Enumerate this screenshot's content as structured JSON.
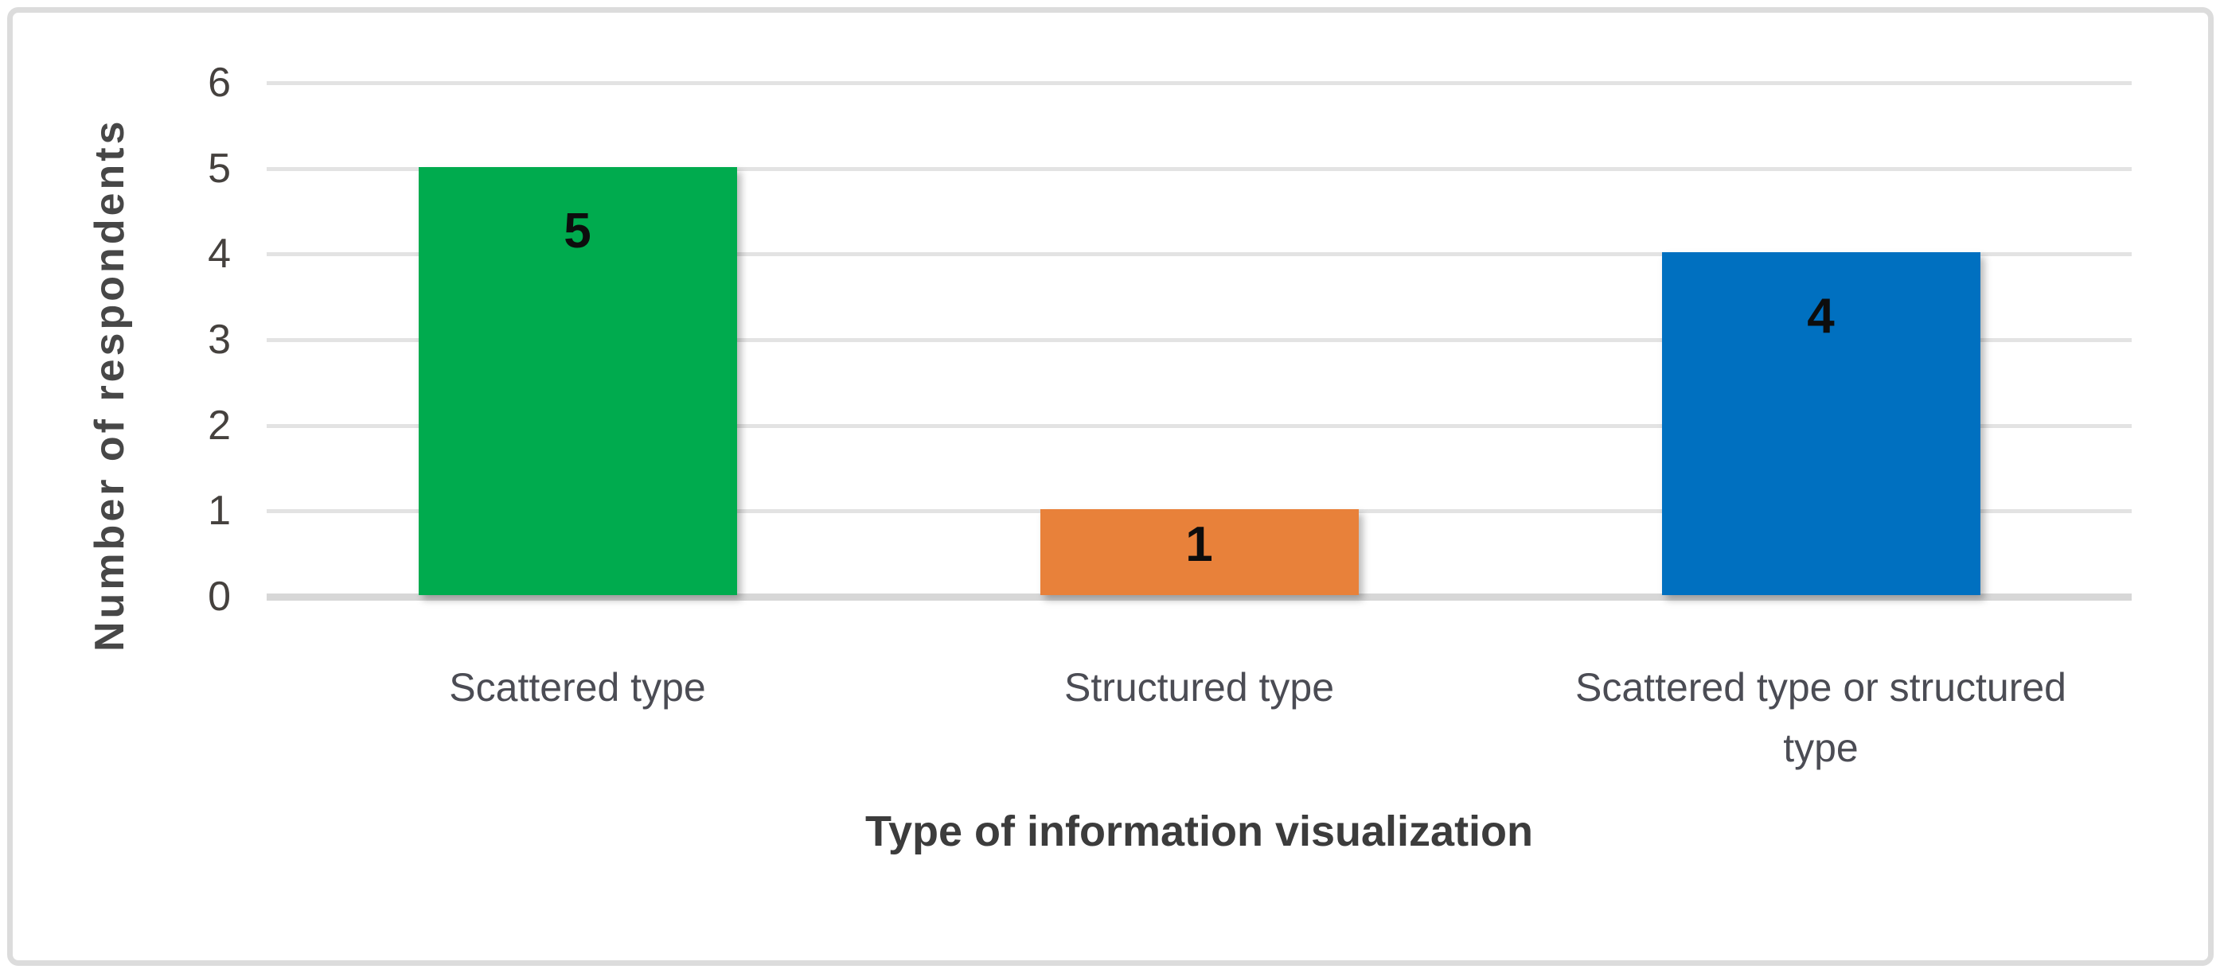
{
  "chart_data": {
    "type": "bar",
    "title": "",
    "categories": [
      "Scattered type",
      "Structured type",
      "Scattered type or structured type"
    ],
    "values": [
      5,
      1,
      4
    ],
    "data_labels": [
      "5",
      "1",
      "4"
    ],
    "series_colors": [
      "#00AB4E",
      "#E8813A",
      "#0070C0"
    ],
    "xlabel": "Type of information visualization",
    "ylabel": "Number of respondents",
    "y_ticks": [
      6,
      5,
      4,
      3,
      2,
      1,
      0
    ],
    "ylim": [
      0,
      6
    ],
    "grid": "horizontal",
    "legend": "none",
    "data_label_position": "inside-top",
    "data_label_color": "#0d0d0d"
  },
  "frame": {
    "border_color": "#dcdcdc",
    "background": "#ffffff"
  },
  "palette": {
    "gridline": "#e3e3e3",
    "baseline": "#d7d7d7",
    "tick_text": "#45413e",
    "category_text": "#4b4c54",
    "axis_title_text": "#3c3c3c",
    "y_title_text": "#474747"
  }
}
